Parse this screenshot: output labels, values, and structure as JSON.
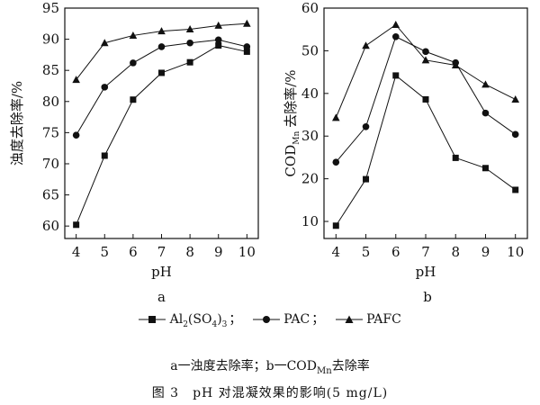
{
  "chart_data": [
    {
      "type": "line",
      "panel_label": "a",
      "ylabel": "浊度去除率/%",
      "xlabel": "pH",
      "x": [
        4,
        5,
        6,
        7,
        8,
        9,
        10
      ],
      "xlim": [
        3.6,
        10.4
      ],
      "ylim": [
        58,
        95
      ],
      "yticks": [
        60,
        65,
        70,
        75,
        80,
        85,
        90,
        95
      ],
      "grid": false,
      "series": [
        {
          "name": "Al2(SO4)3",
          "marker": "square",
          "values": [
            60.2,
            71.3,
            80.3,
            84.6,
            86.3,
            89.0,
            88.0
          ]
        },
        {
          "name": "PAC",
          "marker": "circle",
          "values": [
            74.6,
            82.3,
            86.2,
            88.8,
            89.4,
            89.9,
            88.8
          ]
        },
        {
          "name": "PAFC",
          "marker": "triangle",
          "values": [
            83.5,
            89.4,
            90.6,
            91.3,
            91.6,
            92.2,
            92.5
          ]
        }
      ]
    },
    {
      "type": "line",
      "panel_label": "b",
      "ylabel": "COD",
      "ylabel_sub": "Mn",
      "ylabel_rest": "去除率/%",
      "xlabel": "pH",
      "x": [
        4,
        5,
        6,
        7,
        8,
        9,
        10
      ],
      "xlim": [
        3.6,
        10.4
      ],
      "ylim": [
        6,
        60
      ],
      "yticks": [
        10,
        20,
        30,
        40,
        50,
        60
      ],
      "grid": false,
      "series": [
        {
          "name": "Al2(SO4)3",
          "marker": "square",
          "values": [
            9.0,
            19.9,
            44.2,
            38.6,
            24.9,
            22.5,
            17.4
          ]
        },
        {
          "name": "PAC",
          "marker": "circle",
          "values": [
            23.9,
            32.2,
            53.3,
            49.8,
            47.2,
            35.4,
            30.4
          ]
        },
        {
          "name": "PAFC",
          "marker": "triangle",
          "values": [
            34.3,
            51.2,
            56.1,
            47.8,
            46.6,
            42.1,
            38.6
          ]
        }
      ]
    }
  ],
  "legend": {
    "items": [
      {
        "marker": "square",
        "text_main": "Al",
        "text_sub1": "2",
        "text_mid": "(SO",
        "text_sub2": "4",
        "text_end": ")",
        "text_sub3": "3",
        "sep": "；"
      },
      {
        "marker": "circle",
        "text_main": "PAC",
        "sep": "；"
      },
      {
        "marker": "triangle",
        "text_main": "PAFC",
        "sep": ""
      }
    ]
  },
  "caption": {
    "sub_a": "a一浊度去除率；b一COD",
    "sub_mn": "Mn",
    "sub_b": "去除率",
    "main": "图 3　pH 对混凝效果的影响(5 mg/L)"
  }
}
